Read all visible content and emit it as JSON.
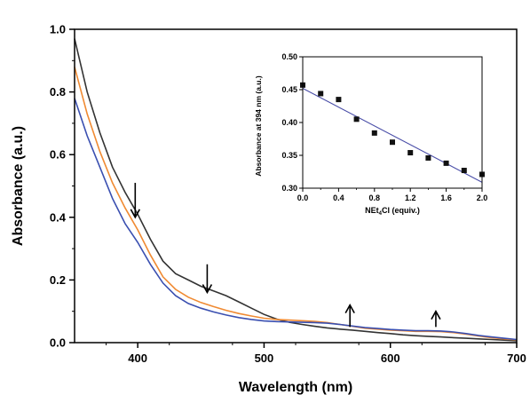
{
  "chart_data": [
    {
      "type": "line",
      "title": "",
      "xlabel": "Wavelength (nm)",
      "ylabel": "Absorbance (a.u.)",
      "xlim": [
        350,
        700
      ],
      "ylim": [
        0.0,
        1.0
      ],
      "xticks": [
        "400",
        "500",
        "600",
        "700"
      ],
      "yticks": [
        "0.0",
        "0.2",
        "0.4",
        "0.6",
        "0.8",
        "1.0"
      ],
      "grid": false,
      "legend": "none",
      "series": [
        {
          "color": "#333333",
          "x": [
            350,
            360,
            370,
            380,
            390,
            400,
            410,
            420,
            430,
            440,
            450,
            460,
            470,
            480,
            490,
            500,
            510,
            520,
            530,
            540,
            550,
            560,
            570,
            580,
            590,
            600,
            610,
            620,
            630,
            640,
            650,
            660,
            670,
            680,
            690,
            700
          ],
          "y": [
            0.97,
            0.8,
            0.67,
            0.56,
            0.48,
            0.41,
            0.33,
            0.26,
            0.22,
            0.2,
            0.18,
            0.165,
            0.15,
            0.13,
            0.11,
            0.09,
            0.075,
            0.065,
            0.058,
            0.052,
            0.047,
            0.043,
            0.04,
            0.036,
            0.032,
            0.029,
            0.025,
            0.022,
            0.02,
            0.018,
            0.016,
            0.014,
            0.012,
            0.01,
            0.008,
            0.006
          ]
        },
        {
          "color": "#f08a32",
          "x": [
            350,
            360,
            370,
            380,
            390,
            400,
            410,
            420,
            430,
            440,
            450,
            460,
            470,
            480,
            490,
            500,
            510,
            520,
            530,
            540,
            550,
            560,
            570,
            580,
            590,
            600,
            610,
            620,
            630,
            640,
            650,
            660,
            670,
            680,
            690,
            700
          ],
          "y": [
            0.88,
            0.73,
            0.61,
            0.51,
            0.43,
            0.36,
            0.28,
            0.21,
            0.17,
            0.145,
            0.128,
            0.115,
            0.103,
            0.093,
            0.085,
            0.078,
            0.074,
            0.072,
            0.07,
            0.068,
            0.064,
            0.058,
            0.052,
            0.046,
            0.043,
            0.04,
            0.038,
            0.036,
            0.036,
            0.035,
            0.032,
            0.027,
            0.021,
            0.016,
            0.012,
            0.009
          ]
        },
        {
          "color": "#3a4fb0",
          "x": [
            350,
            360,
            370,
            380,
            390,
            400,
            410,
            420,
            430,
            440,
            450,
            460,
            470,
            480,
            490,
            500,
            510,
            520,
            530,
            540,
            550,
            560,
            570,
            580,
            590,
            600,
            610,
            620,
            630,
            640,
            650,
            660,
            670,
            680,
            690,
            700
          ],
          "y": [
            0.78,
            0.66,
            0.56,
            0.46,
            0.38,
            0.32,
            0.25,
            0.19,
            0.15,
            0.125,
            0.11,
            0.098,
            0.088,
            0.08,
            0.074,
            0.069,
            0.067,
            0.066,
            0.065,
            0.064,
            0.062,
            0.058,
            0.053,
            0.048,
            0.045,
            0.042,
            0.04,
            0.038,
            0.038,
            0.037,
            0.034,
            0.029,
            0.023,
            0.018,
            0.014,
            0.01
          ]
        }
      ],
      "arrows": [
        {
          "x": 398,
          "y_tail": 0.51,
          "y_head": 0.4,
          "direction": "down"
        },
        {
          "x": 455,
          "y_tail": 0.25,
          "y_head": 0.16,
          "direction": "down"
        },
        {
          "x": 568,
          "y_tail": 0.05,
          "y_head": 0.12,
          "direction": "up"
        },
        {
          "x": 636,
          "y_tail": 0.05,
          "y_head": 0.1,
          "direction": "up"
        }
      ]
    },
    {
      "type": "scatter",
      "title": "",
      "xlabel_main": "NEt",
      "xlabel_sub": "4",
      "xlabel_rest": "Cl (equiv.)",
      "ylabel": "Absorbance at 394 nm (a.u.)",
      "xlim": [
        0.0,
        2.0
      ],
      "ylim": [
        0.3,
        0.5
      ],
      "xticks": [
        "0.0",
        "0.4",
        "0.8",
        "1.2",
        "1.6",
        "2.0"
      ],
      "yticks": [
        "0.30",
        "0.35",
        "0.40",
        "0.45",
        "0.50"
      ],
      "grid": false,
      "legend": "none",
      "points": {
        "x": [
          0.0,
          0.2,
          0.4,
          0.6,
          0.8,
          1.0,
          1.2,
          1.4,
          1.6,
          1.8,
          2.0
        ],
        "y": [
          0.457,
          0.444,
          0.435,
          0.405,
          0.384,
          0.37,
          0.354,
          0.346,
          0.338,
          0.327,
          0.321
        ]
      },
      "fit": {
        "color": "#4b4fa8",
        "x": [
          0.0,
          2.0
        ],
        "y": [
          0.452,
          0.309
        ]
      }
    }
  ]
}
